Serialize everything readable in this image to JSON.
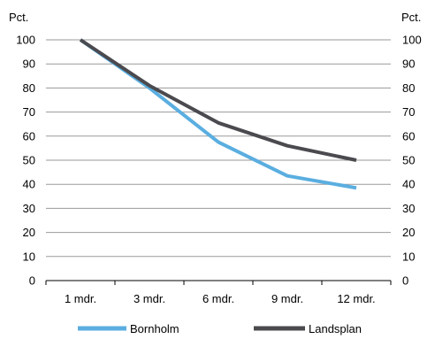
{
  "chart_data": {
    "type": "line",
    "categories": [
      "1 mdr.",
      "3 mdr.",
      "6 mdr.",
      "9 mdr.",
      "12 mdr."
    ],
    "series": [
      {
        "name": "Bornholm",
        "color": "#5aaee0",
        "values": [
          100,
          80,
          57.5,
          43.5,
          38.5
        ]
      },
      {
        "name": "Landsplan",
        "color": "#4a4a4f",
        "values": [
          100,
          81,
          65.5,
          56,
          50
        ]
      }
    ],
    "y_unit_left": "Pct.",
    "y_unit_right": "Pct.",
    "ylim": [
      0,
      100
    ],
    "yticks": [
      0,
      10,
      20,
      30,
      40,
      50,
      60,
      70,
      80,
      90,
      100
    ],
    "grid": true,
    "legend_position": "bottom"
  }
}
